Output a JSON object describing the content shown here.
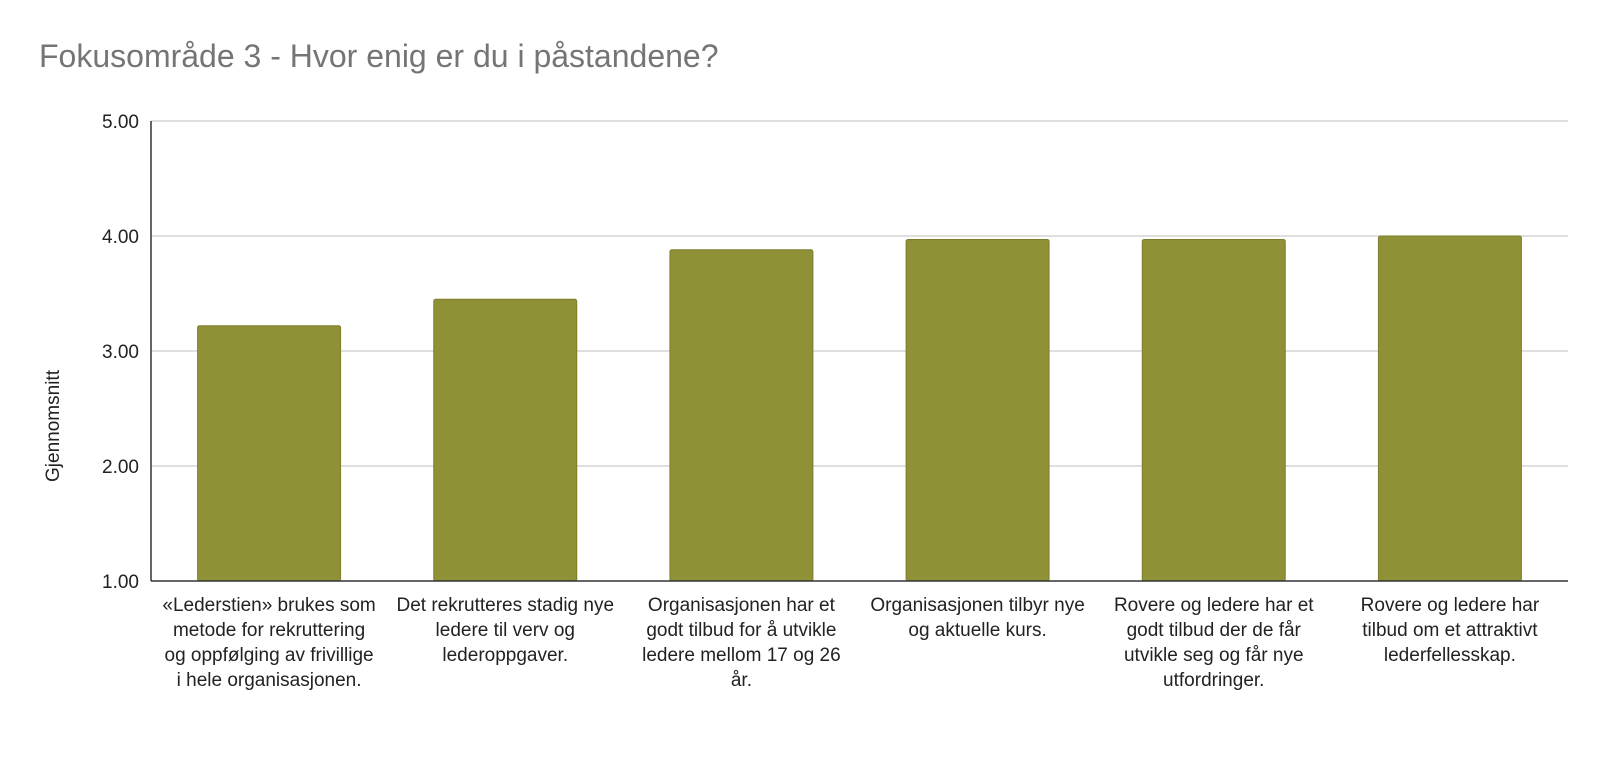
{
  "chart_data": {
    "type": "bar",
    "title": "Fokusområde 3 - Hvor enig er du i påstandene?",
    "xlabel": "",
    "ylabel": "Gjennomsnitt",
    "ylim": [
      1,
      5
    ],
    "yticks": [
      "1.00",
      "2.00",
      "3.00",
      "4.00",
      "5.00"
    ],
    "grid": true,
    "bar_color": "#8f9137",
    "categories": [
      "«Lederstien» brukes som metode for rekruttering og oppfølging av frivillige i hele organisasjonen.",
      "Det rekrutteres stadig nye ledere til verv og lederoppgaver.",
      "Organisasjonen har et godt tilbud for å utvikle ledere mellom 17 og 26 år.",
      "Organisasjonen tilbyr nye og aktuelle kurs.",
      "Rovere og ledere har et godt tilbud der de får utvikle seg og får nye utfordringer.",
      "Rovere og ledere har tilbud om et attraktivt lederfellesskap."
    ],
    "values": [
      3.22,
      3.45,
      3.88,
      3.97,
      3.97,
      4.0
    ]
  }
}
